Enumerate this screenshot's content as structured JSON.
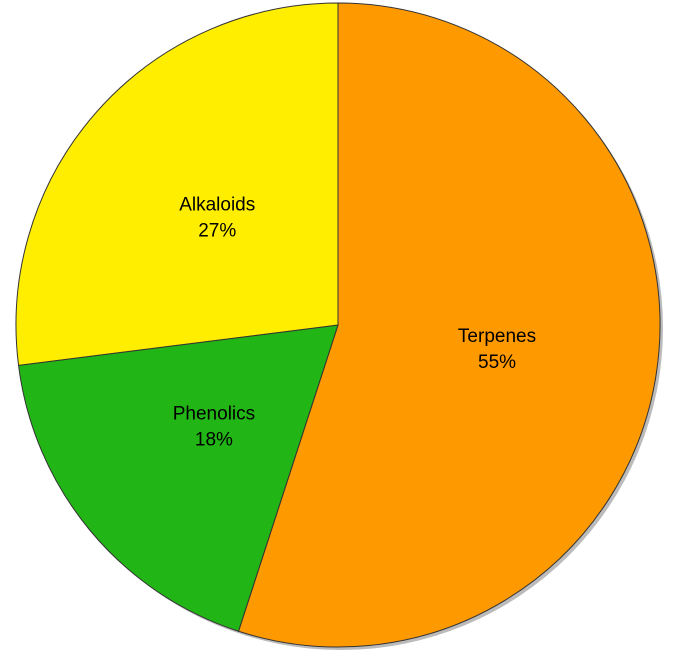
{
  "chart_data": {
    "type": "pie",
    "categories": [
      "Terpenes",
      "Phenolics",
      "Alkaloids"
    ],
    "values": [
      55,
      18,
      27
    ],
    "value_labels": [
      "55%",
      "18%",
      "27%"
    ],
    "colors": [
      "#ff9900",
      "#22b516",
      "#ffee00"
    ]
  }
}
